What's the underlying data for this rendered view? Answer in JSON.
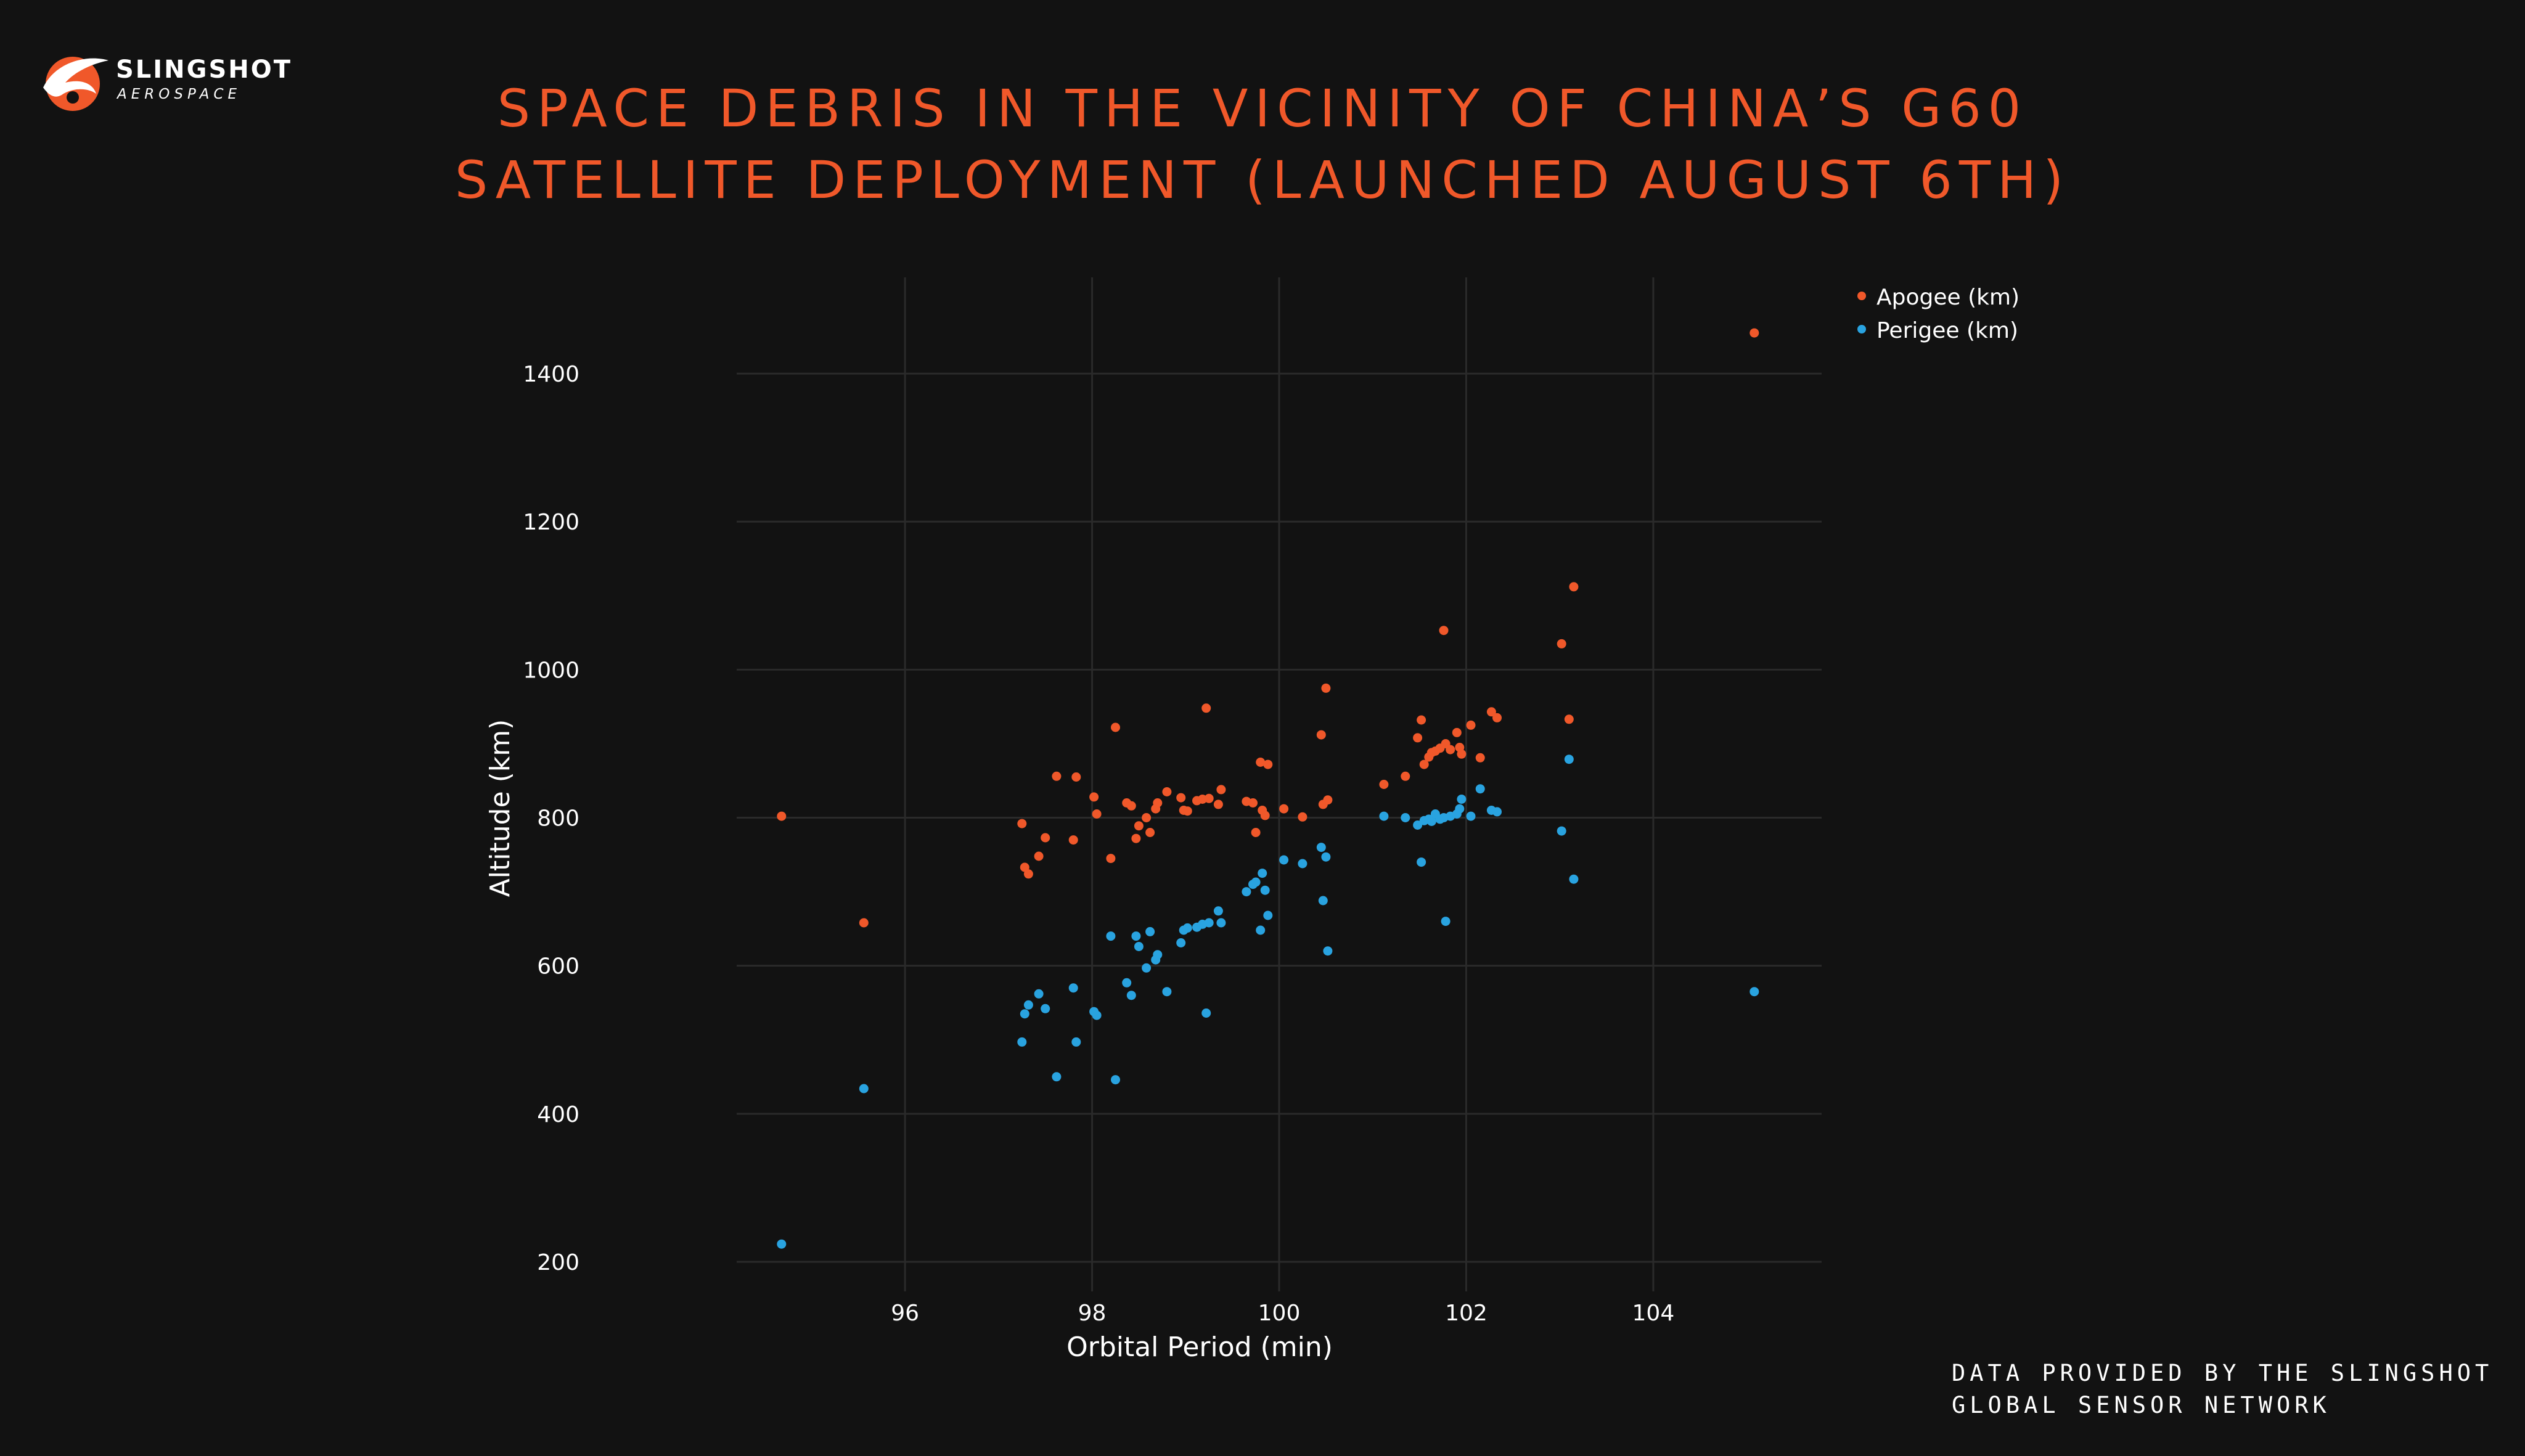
{
  "brand": {
    "name": "SLINGSHOT",
    "subtitle": "AEROSPACE",
    "logo_icon": "slingshot-swoosh-icon",
    "accent_color": "#f0582a"
  },
  "title_lines": [
    "SPACE DEBRIS IN THE VICINITY OF CHINA’S G60",
    "SATELLITE DEPLOYMENT (LAUNCHED AUGUST 6TH)"
  ],
  "footer_lines": [
    "DATA PROVIDED BY THE SLINGSHOT",
    "GLOBAL SENSOR NETWORK"
  ],
  "chart_data": {
    "type": "scatter",
    "title": "",
    "xlabel": "Orbital Period (min)",
    "ylabel": "Altitude (km)",
    "xlim": [
      94.2,
      105.8
    ],
    "ylim": [
      160,
      1530
    ],
    "xticks": [
      96,
      98,
      100,
      102,
      104
    ],
    "yticks": [
      200,
      400,
      600,
      800,
      1000,
      1200,
      1400
    ],
    "grid": true,
    "legend_position": "top-right",
    "background_color": "#121212",
    "grid_color": "#2a2a2a",
    "series": [
      {
        "name": "Apogee (km)",
        "color": "#f0582a",
        "x": [
          94.68,
          95.56,
          97.25,
          97.28,
          97.32,
          97.43,
          97.5,
          97.62,
          97.8,
          97.83,
          98.02,
          98.05,
          98.2,
          98.25,
          98.37,
          98.42,
          98.47,
          98.5,
          98.58,
          98.62,
          98.68,
          98.7,
          98.8,
          98.95,
          98.98,
          99.02,
          99.12,
          99.18,
          99.22,
          99.25,
          99.35,
          99.38,
          99.65,
          99.72,
          99.75,
          99.8,
          99.82,
          99.85,
          99.88,
          100.05,
          100.25,
          100.45,
          100.47,
          100.5,
          100.52,
          101.12,
          101.35,
          101.48,
          101.52,
          101.55,
          101.6,
          101.63,
          101.67,
          101.72,
          101.76,
          101.78,
          101.83,
          101.9,
          101.93,
          101.95,
          102.05,
          102.15,
          102.27,
          102.33,
          103.02,
          103.1,
          103.15,
          105.08
        ],
        "y": [
          802,
          658,
          792,
          733,
          724,
          748,
          773,
          856,
          770,
          855,
          828,
          805,
          745,
          922,
          820,
          816,
          772,
          789,
          800,
          780,
          812,
          820,
          835,
          827,
          810,
          809,
          823,
          825,
          948,
          826,
          818,
          838,
          822,
          820,
          780,
          875,
          810,
          803,
          872,
          812,
          801,
          912,
          818,
          975,
          824,
          845,
          856,
          908,
          932,
          872,
          882,
          888,
          890,
          894,
          1053,
          900,
          892,
          915,
          895,
          886,
          925,
          881,
          943,
          935,
          1035,
          933,
          1112,
          1455
        ]
      },
      {
        "name": "Perigee (km)",
        "color": "#29a3e0",
        "x": [
          94.68,
          95.56,
          97.25,
          97.28,
          97.32,
          97.43,
          97.5,
          97.62,
          97.8,
          97.83,
          98.02,
          98.05,
          98.2,
          98.25,
          98.37,
          98.42,
          98.47,
          98.5,
          98.58,
          98.62,
          98.68,
          98.7,
          98.8,
          98.95,
          98.98,
          99.02,
          99.12,
          99.18,
          99.22,
          99.25,
          99.35,
          99.38,
          99.65,
          99.72,
          99.75,
          99.8,
          99.82,
          99.85,
          99.88,
          100.05,
          100.25,
          100.45,
          100.47,
          100.5,
          100.52,
          101.12,
          101.35,
          101.48,
          101.52,
          101.55,
          101.6,
          101.63,
          101.67,
          101.72,
          101.76,
          101.78,
          101.83,
          101.9,
          101.93,
          101.95,
          102.05,
          102.15,
          102.27,
          102.33,
          103.02,
          103.1,
          103.15,
          105.08
        ],
        "y": [
          224,
          434,
          497,
          535,
          547,
          562,
          542,
          450,
          570,
          497,
          538,
          533,
          640,
          446,
          577,
          560,
          640,
          626,
          597,
          646,
          608,
          615,
          565,
          631,
          648,
          651,
          652,
          656,
          536,
          658,
          674,
          658,
          700,
          710,
          713,
          648,
          725,
          702,
          668,
          743,
          738,
          760,
          688,
          747,
          620,
          802,
          800,
          790,
          740,
          796,
          798,
          795,
          805,
          798,
          800,
          660,
          802,
          805,
          812,
          825,
          802,
          839,
          810,
          808,
          782,
          879,
          717,
          565
        ]
      }
    ]
  }
}
